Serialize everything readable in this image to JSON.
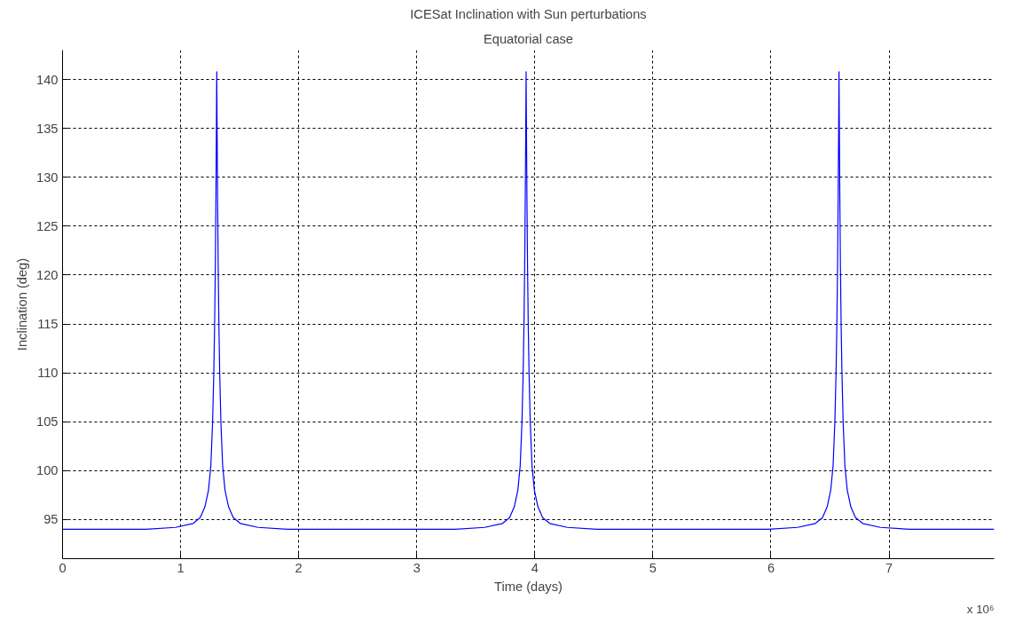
{
  "chart_data": {
    "type": "line",
    "title": "ICESat Inclination with Sun perturbations",
    "subtitle": "Equatorial case",
    "xlabel": "Time (days)",
    "ylabel": "Inclination (deg)",
    "annotations": [
      "x 10⁶"
    ],
    "xlim": [
      0,
      7.89
    ],
    "ylim": [
      91,
      143
    ],
    "xticks": [
      0,
      1,
      2,
      3,
      4,
      5,
      6,
      7
    ],
    "yticks": [
      95,
      100,
      105,
      110,
      115,
      120,
      125,
      130,
      135,
      140
    ],
    "grid": true,
    "line_style": "solid",
    "series": [
      {
        "color": "#0000ff",
        "x": [
          0,
          0.706,
          0.956,
          1.106,
          1.166,
          1.206,
          1.236,
          1.256,
          1.271,
          1.281,
          1.288,
          1.294,
          1.299,
          1.303,
          1.306,
          1.309,
          1.313,
          1.318,
          1.324,
          1.331,
          1.341,
          1.356,
          1.376,
          1.406,
          1.446,
          1.506,
          1.656,
          1.906,
          3.326,
          3.576,
          3.726,
          3.786,
          3.826,
          3.856,
          3.876,
          3.891,
          3.901,
          3.908,
          3.914,
          3.919,
          3.923,
          3.926,
          3.929,
          3.933,
          3.938,
          3.944,
          3.951,
          3.961,
          3.976,
          3.996,
          4.026,
          4.066,
          4.126,
          4.276,
          4.526,
          5.976,
          6.226,
          6.376,
          6.436,
          6.476,
          6.506,
          6.526,
          6.541,
          6.551,
          6.558,
          6.564,
          6.569,
          6.573,
          6.576,
          6.579,
          6.583,
          6.588,
          6.594,
          6.601,
          6.611,
          6.626,
          6.646,
          6.676,
          6.716,
          6.776,
          6.926,
          7.176,
          7.89
        ],
        "values": [
          94.0,
          94.0,
          94.2,
          94.6,
          95.2,
          96.3,
          98,
          100.5,
          105,
          110,
          115,
          121,
          128,
          135,
          140.8,
          135,
          128,
          121,
          115,
          110,
          105,
          100.5,
          98,
          96.3,
          95.2,
          94.6,
          94.2,
          94.0,
          94.0,
          94.2,
          94.6,
          95.2,
          96.3,
          98,
          100.5,
          105,
          110,
          115,
          121,
          128,
          135,
          140.8,
          135,
          128,
          121,
          115,
          110,
          105,
          100.5,
          98,
          96.3,
          95.2,
          94.6,
          94.2,
          94.0,
          94.0,
          94.2,
          94.6,
          95.2,
          96.3,
          98,
          100.5,
          105,
          110,
          115,
          121,
          128,
          135,
          140.8,
          135,
          128,
          121,
          115,
          110,
          105,
          100.5,
          98,
          96.3,
          95.2,
          94.6,
          94.2,
          94.0,
          94.0
        ]
      }
    ]
  }
}
